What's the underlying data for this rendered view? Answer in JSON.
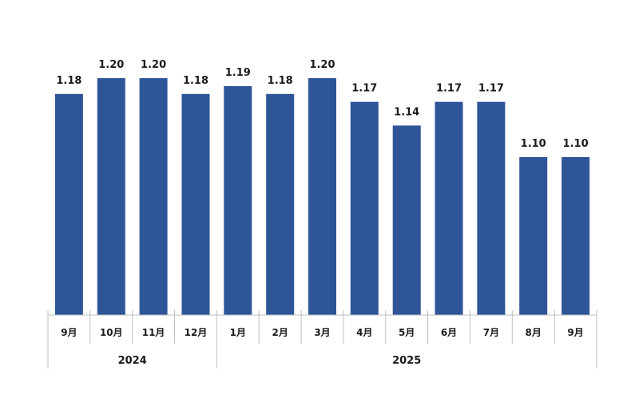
{
  "chart_data": {
    "type": "bar",
    "categories": [
      "9月",
      "10月",
      "11月",
      "12月",
      "1月",
      "2月",
      "3月",
      "4月",
      "5月",
      "6月",
      "7月",
      "8月",
      "9月"
    ],
    "values": [
      1.18,
      1.2,
      1.2,
      1.18,
      1.19,
      1.18,
      1.2,
      1.17,
      1.14,
      1.17,
      1.17,
      1.1,
      1.1
    ],
    "value_labels": [
      "1.18",
      "1.20",
      "1.20",
      "1.18",
      "1.19",
      "1.18",
      "1.20",
      "1.17",
      "1.14",
      "1.17",
      "1.17",
      "1.10",
      "1.10"
    ],
    "year_groups": [
      {
        "label": "2024",
        "start": 0,
        "end": 3
      },
      {
        "label": "2025",
        "start": 4,
        "end": 12
      }
    ],
    "title": "",
    "xlabel": "",
    "ylabel": "",
    "ylim": [
      0.9,
      1.2
    ],
    "grid": false,
    "bar_color": "#2e5597",
    "axis_color": "#bfbfbf"
  }
}
